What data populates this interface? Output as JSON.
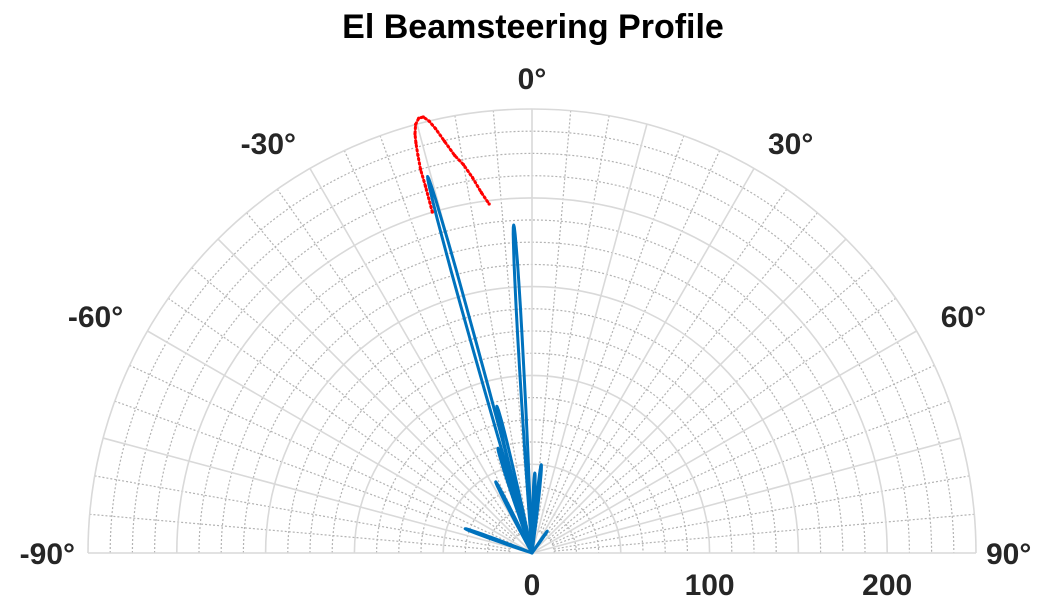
{
  "chart_data": {
    "type": "polar-line",
    "title": "El Beamsteering Profile",
    "theta_range_deg": [
      -90,
      90
    ],
    "r_max": 250,
    "angle_tick_labels": [
      {
        "deg": -90,
        "label": "-90°"
      },
      {
        "deg": -60,
        "label": "-60°"
      },
      {
        "deg": -30,
        "label": "-30°"
      },
      {
        "deg": 0,
        "label": "0°"
      },
      {
        "deg": 30,
        "label": "30°"
      },
      {
        "deg": 60,
        "label": "60°"
      },
      {
        "deg": 90,
        "label": "90°"
      }
    ],
    "radius_tick_labels": [
      {
        "r": 0,
        "label": "0"
      },
      {
        "r": 100,
        "label": "100"
      },
      {
        "r": 200,
        "label": "200"
      }
    ],
    "grid": true,
    "series": [
      {
        "color": "#0072bd",
        "style": "solid",
        "lobes": [
          {
            "theta": -15.5,
            "r": 220
          },
          {
            "theta": -3.2,
            "r": 185
          },
          {
            "theta": -13.5,
            "r": 85
          },
          {
            "theta": -18.0,
            "r": 62
          },
          {
            "theta": 6.0,
            "r": 50
          },
          {
            "theta": 2.0,
            "r": 45
          },
          {
            "theta": -27.0,
            "r": 45
          },
          {
            "theta": -70.0,
            "r": 40
          },
          {
            "theta": 35.0,
            "r": 15
          }
        ]
      },
      {
        "color": "#ff0000",
        "style": "dotted",
        "points": [
          {
            "theta": -16.3,
            "r": 200
          },
          {
            "theta": -16.2,
            "r": 215
          },
          {
            "theta": -16.2,
            "r": 225
          },
          {
            "theta": -16.0,
            "r": 233
          },
          {
            "theta": -15.8,
            "r": 240
          },
          {
            "theta": -15.6,
            "r": 245
          },
          {
            "theta": -15.2,
            "r": 250
          },
          {
            "theta": -14.6,
            "r": 253
          },
          {
            "theta": -14.0,
            "r": 253
          },
          {
            "theta": -13.4,
            "r": 250
          },
          {
            "theta": -12.8,
            "r": 245
          },
          {
            "theta": -12.0,
            "r": 237
          },
          {
            "theta": -11.0,
            "r": 228
          },
          {
            "theta": -10.0,
            "r": 222
          },
          {
            "theta": -9.0,
            "r": 214
          },
          {
            "theta": -8.0,
            "r": 205
          },
          {
            "theta": -7.0,
            "r": 198
          }
        ]
      }
    ]
  }
}
